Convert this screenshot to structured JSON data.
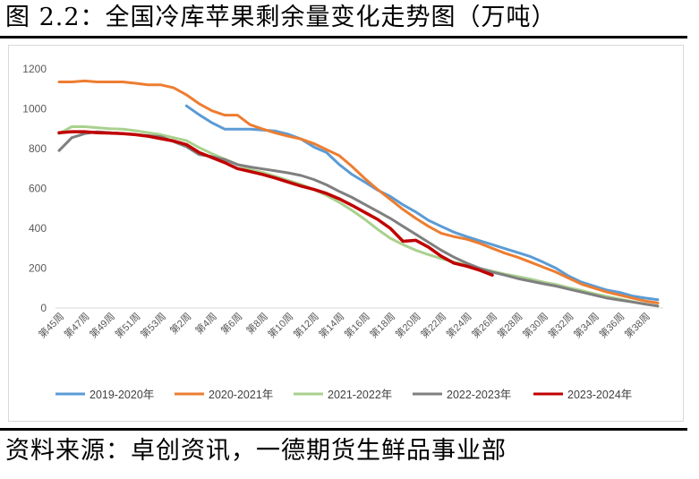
{
  "header": {
    "title": "图 2.2：全国冷库苹果剩余量变化走势图（万吨）"
  },
  "footer": {
    "source": "资料来源：卓创资讯，一德期货生鲜品事业部"
  },
  "chart_data": {
    "type": "line",
    "title": "全国冷库苹果剩余量变化走势图（万吨）",
    "xlabel": "",
    "ylabel": "",
    "ylim": [
      0,
      1200
    ],
    "yticks": [
      0,
      200,
      400,
      600,
      800,
      1000,
      1200
    ],
    "categories": [
      "第45周",
      "第46周",
      "第47周",
      "第48周",
      "第49周",
      "第50周",
      "第51周",
      "第52周",
      "第53周",
      "第1周",
      "第2周",
      "第3周",
      "第4周",
      "第5周",
      "第6周",
      "第7周",
      "第8周",
      "第9周",
      "第10周",
      "第11周",
      "第12周",
      "第13周",
      "第14周",
      "第15周",
      "第16周",
      "第17周",
      "第18周",
      "第19周",
      "第20周",
      "第21周",
      "第22周",
      "第23周",
      "第24周",
      "第25周",
      "第26周",
      "第27周",
      "第28周",
      "第29周",
      "第30周",
      "第31周",
      "第32周",
      "第33周",
      "第34周",
      "第35周",
      "第36周",
      "第37周",
      "第38周",
      "第39周"
    ],
    "tick_labels": [
      "第45周",
      "第47周",
      "第49周",
      "第51周",
      "第53周",
      "第2周",
      "第4周",
      "第6周",
      "第8周",
      "第10周",
      "第12周",
      "第14周",
      "第16周",
      "第18周",
      "第20周",
      "第22周",
      "第24周",
      "第26周",
      "第28周",
      "第30周",
      "第32周",
      "第34周",
      "第36周",
      "第38周"
    ],
    "grid": false,
    "legend": "bottom",
    "series": [
      {
        "name": "2019-2020年",
        "color": "#5B9BD5",
        "values": [
          null,
          null,
          null,
          null,
          null,
          null,
          null,
          null,
          null,
          null,
          1015,
          970,
          930,
          898,
          898,
          898,
          893,
          888,
          872,
          848,
          808,
          780,
          720,
          670,
          632,
          592,
          560,
          518,
          482,
          440,
          410,
          380,
          358,
          338,
          318,
          298,
          278,
          258,
          230,
          200,
          160,
          130,
          110,
          90,
          78,
          60,
          50,
          42
        ]
      },
      {
        "name": "2020-2021年",
        "color": "#ED7D31",
        "values": [
          1135,
          1135,
          1140,
          1135,
          1135,
          1135,
          1128,
          1120,
          1120,
          1105,
          1070,
          1025,
          990,
          968,
          968,
          920,
          898,
          878,
          862,
          848,
          825,
          795,
          765,
          710,
          650,
          595,
          545,
          495,
          450,
          410,
          375,
          358,
          345,
          325,
          300,
          275,
          255,
          230,
          205,
          180,
          150,
          120,
          100,
          80,
          65,
          50,
          35,
          25
        ]
      },
      {
        "name": "2021-2022年",
        "color": "#A9D18E",
        "values": [
          875,
          910,
          910,
          905,
          900,
          898,
          890,
          880,
          870,
          855,
          840,
          805,
          775,
          748,
          720,
          695,
          680,
          660,
          640,
          620,
          595,
          565,
          530,
          490,
          445,
          395,
          350,
          318,
          290,
          268,
          248,
          230,
          215,
          198,
          185,
          170,
          158,
          145,
          130,
          118,
          102,
          88,
          72,
          58,
          45,
          32,
          20,
          10
        ]
      },
      {
        "name": "2022-2023年",
        "color": "#7F7F7F",
        "values": [
          790,
          855,
          875,
          885,
          880,
          875,
          870,
          865,
          860,
          835,
          810,
          770,
          760,
          745,
          720,
          708,
          698,
          688,
          678,
          665,
          645,
          618,
          585,
          555,
          520,
          485,
          450,
          410,
          370,
          330,
          290,
          255,
          225,
          200,
          180,
          165,
          148,
          135,
          122,
          110,
          95,
          80,
          65,
          50,
          40,
          30,
          20,
          10
        ]
      },
      {
        "name": "2023-2024年",
        "color": "#C00000",
        "values": [
          880,
          885,
          885,
          880,
          878,
          875,
          870,
          862,
          850,
          838,
          820,
          780,
          755,
          730,
          700,
          685,
          670,
          652,
          632,
          612,
          595,
          575,
          548,
          515,
          480,
          445,
          400,
          335,
          340,
          305,
          260,
          225,
          210,
          190,
          165,
          null,
          null,
          null,
          null,
          null,
          null,
          null,
          null,
          null,
          null,
          null,
          null,
          null
        ]
      }
    ]
  }
}
